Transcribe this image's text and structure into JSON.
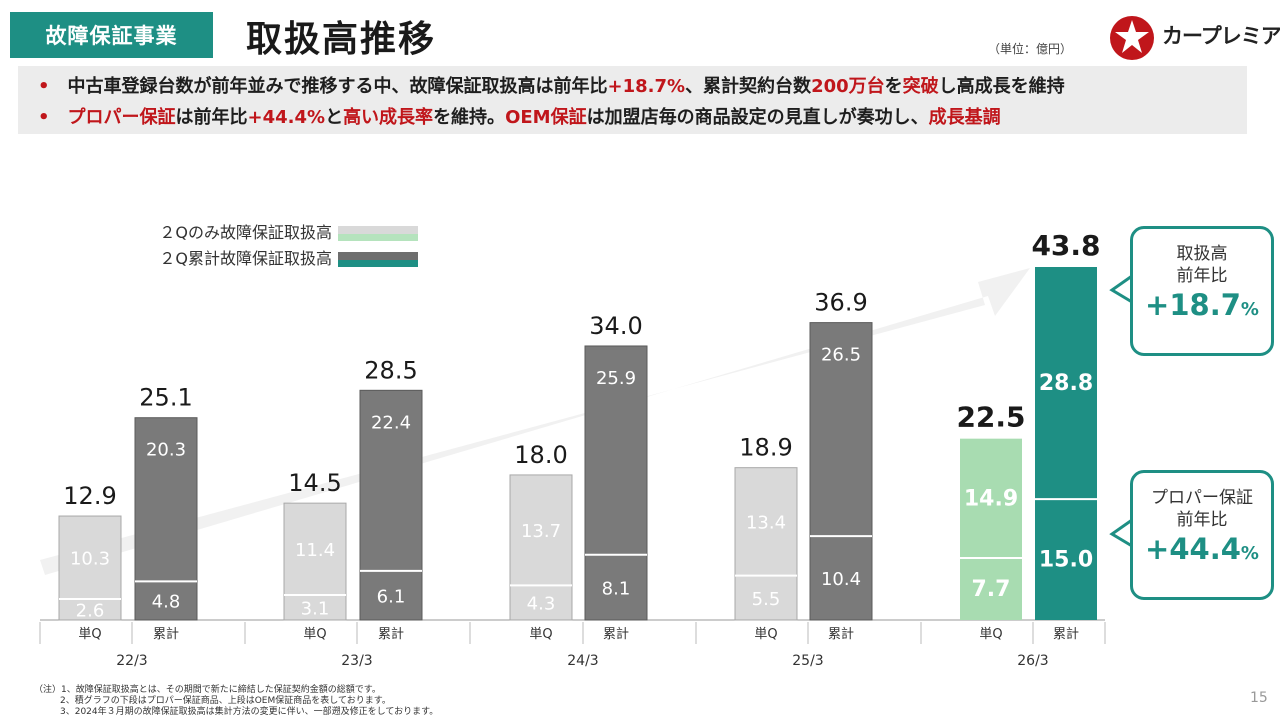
{
  "header": {
    "segment_tag": "故障保証事業",
    "title": "取扱高推移",
    "unit": "（単位：億円）",
    "logo_text": "カープレミア"
  },
  "summary": {
    "bullet1": [
      {
        "text": "中古車登録台数が前年並みで推移する中、故障保証取扱高は前年比",
        "red": false
      },
      {
        "text": "+18.7",
        "red": true
      },
      {
        "text": "%",
        "red": true
      },
      {
        "text": "、累計契約台数",
        "red": false
      },
      {
        "text": "200万台",
        "red": true
      },
      {
        "text": "を",
        "red": false
      },
      {
        "text": "突破",
        "red": true
      },
      {
        "text": "し高成長を維持",
        "red": false
      }
    ],
    "bullet2": [
      {
        "text": "プロパー保証",
        "red": true
      },
      {
        "text": "は前年比",
        "red": false
      },
      {
        "text": "+44.4",
        "red": true
      },
      {
        "text": "%",
        "red": true
      },
      {
        "text": "と",
        "red": false
      },
      {
        "text": "高い成長率",
        "red": true
      },
      {
        "text": "を維持。",
        "red": false
      },
      {
        "text": "OEM保証",
        "red": true
      },
      {
        "text": "は加盟店毎の商品設定の見直しが奏功し、",
        "red": false
      },
      {
        "text": "成長基調",
        "red": true
      }
    ]
  },
  "colors": {
    "brand": "#1e8f84",
    "accent_red": "#c0161b",
    "single_past": "#d9d9d9",
    "cumulative_past": "#7a7a7a",
    "single_current": "#a8dcb1",
    "cumulative_current": "#1e8f84"
  },
  "chart_data": {
    "type": "bar",
    "stacked": true,
    "legend": [
      {
        "label": "２Qのみ故障保証取扱高",
        "colors": [
          "#d9d9d9",
          "#b5e3bd"
        ]
      },
      {
        "label": "２Q累計故障保証取扱高",
        "colors": [
          "#6e6e6e",
          "#1e8f84"
        ]
      }
    ],
    "bar_labels": {
      "single": "単Q",
      "cumulative": "累計"
    },
    "series_names": [
      "プロパー保証",
      "OEM保証"
    ],
    "groups": [
      {
        "period": "22/3",
        "single": {
          "total": "12.9",
          "lower": "2.6",
          "upper": "10.3"
        },
        "cumulative": {
          "total": "25.1",
          "lower": "4.8",
          "upper": "20.3"
        }
      },
      {
        "period": "23/3",
        "single": {
          "total": "14.5",
          "lower": "3.1",
          "upper": "11.4"
        },
        "cumulative": {
          "total": "28.5",
          "lower": "6.1",
          "upper": "22.4"
        }
      },
      {
        "period": "24/3",
        "single": {
          "total": "18.0",
          "lower": "4.3",
          "upper": "13.7"
        },
        "cumulative": {
          "total": "34.0",
          "lower": "8.1",
          "upper": "25.9"
        }
      },
      {
        "period": "25/3",
        "single": {
          "total": "18.9",
          "lower": "5.5",
          "upper": "13.4"
        },
        "cumulative": {
          "total": "36.9",
          "lower": "10.4",
          "upper": "26.5"
        }
      },
      {
        "period": "26/3",
        "single": {
          "total": "22.5",
          "lower": "7.7",
          "upper": "14.9"
        },
        "cumulative": {
          "total": "43.8",
          "lower": "15.0",
          "upper": "28.8"
        }
      }
    ],
    "ylim": [
      0,
      43.8
    ]
  },
  "callouts": {
    "total": {
      "line1": "取扱高",
      "line2": "前年比",
      "value": "+18.7",
      "unit": "%"
    },
    "proper": {
      "line1": "プロパー保証",
      "line2": "前年比",
      "value": "+44.4",
      "unit": "%"
    }
  },
  "footnotes": {
    "line1": "（注）1、故障保証取扱高とは、その期間で新たに締結した保証契約金額の総額です。",
    "line2": "2、積グラフの下段はプロパー保証商品、上段はOEM保証商品を表しております。",
    "line3": "3、2024年３月期の故障保証取扱高は集計方法の変更に伴い、一部遡及修正をしております。"
  },
  "page_number": "15"
}
